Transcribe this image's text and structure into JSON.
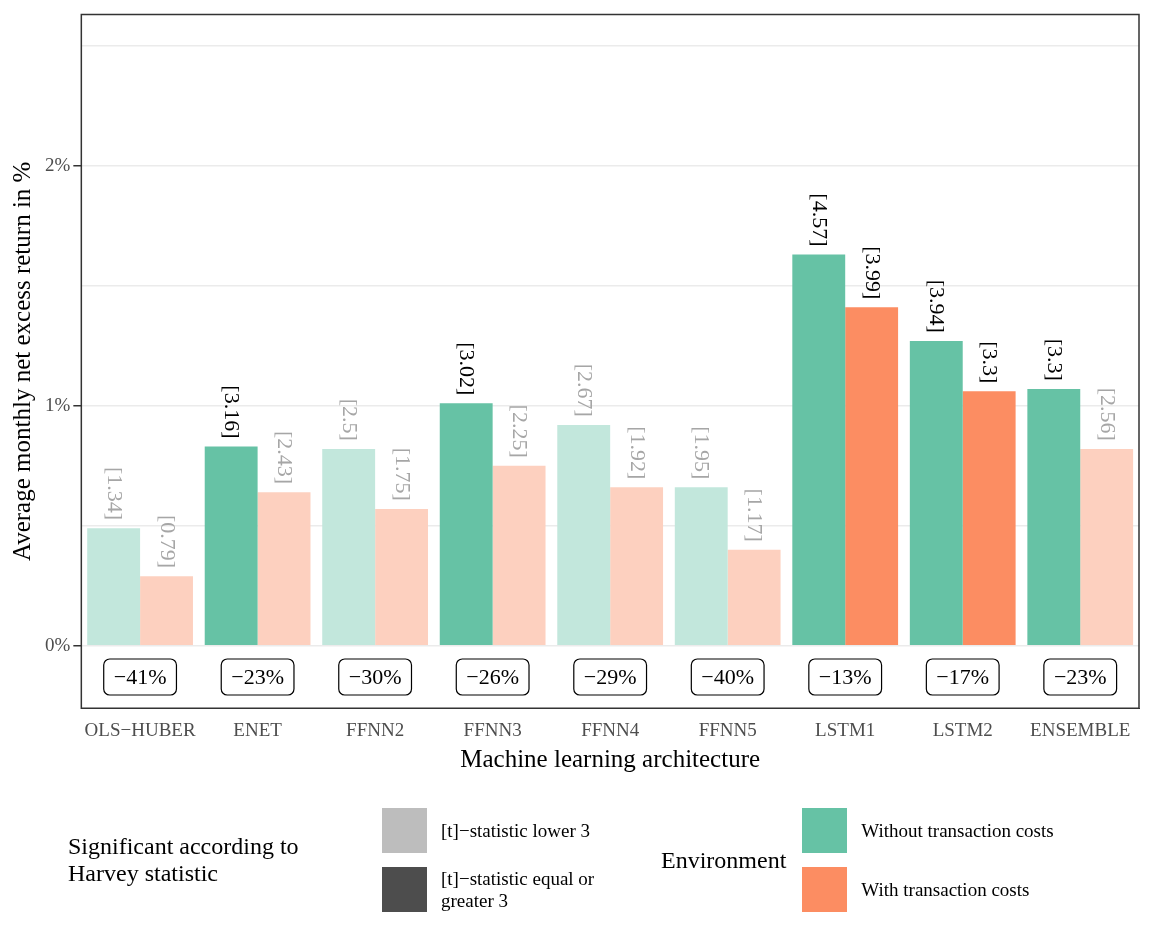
{
  "chart_data": {
    "type": "bar",
    "xlabel": "Machine learning architecture",
    "ylabel": "Average monthly net excess return in %",
    "categories": [
      "OLS−HUBER",
      "ENET",
      "FFNN2",
      "FFNN3",
      "FFNN4",
      "FFNN5",
      "LSTM1",
      "LSTM2",
      "ENSEMBLE"
    ],
    "series": [
      {
        "name": "Without transaction costs",
        "color": "#66c2a5",
        "colors": [
          "#c2e7dc",
          "#66c2a5",
          "#c2e7dc",
          "#66c2a5",
          "#c2e7dc",
          "#c2e7dc",
          "#66c2a5",
          "#66c2a5",
          "#66c2a5"
        ],
        "values": [
          0.49,
          0.83,
          0.82,
          1.01,
          0.92,
          0.66,
          1.63,
          1.27,
          1.07
        ]
      },
      {
        "name": "With transaction costs",
        "color": "#fc8d62",
        "colors": [
          "#fdd0bf",
          "#fdd0bf",
          "#fdd0bf",
          "#fdd0bf",
          "#fdd0bf",
          "#fdd0bf",
          "#fc8d62",
          "#fc8d62",
          "#fdd0bf"
        ],
        "values": [
          0.29,
          0.64,
          0.57,
          0.75,
          0.66,
          0.4,
          1.41,
          1.06,
          0.82
        ]
      }
    ],
    "ylim": [
      -0.26,
      2.63
    ],
    "yticks": [
      {
        "value": 0,
        "label": "0%"
      },
      {
        "value": 0.5,
        "label": null
      },
      {
        "value": 1,
        "label": "1%"
      },
      {
        "value": 1.5,
        "label": null
      },
      {
        "value": 2,
        "label": "2%"
      },
      {
        "value": 2.5,
        "label": null
      }
    ],
    "grid": "y",
    "legend": "bottom",
    "legend_title": "Environment",
    "annotations": [
      "Significant according to Harvey statistic",
      "[t]−statistic lower 3",
      "[t]−statistic equal or greater 3",
      "−41%",
      "−23%",
      "−30%",
      "−26%",
      "−29%",
      "−40%",
      "−13%",
      "−17%",
      "−23%",
      {
        "text": "[1.34]",
        "x": "OLS−HUBER",
        "y": 0.49
      },
      {
        "text": "[3.16]",
        "x": "ENET",
        "y": 0.83
      },
      {
        "text": "[2.5]",
        "x": "FFNN2",
        "y": 0.82
      },
      {
        "text": "[3.02]",
        "x": "FFNN3",
        "y": 1.01
      },
      {
        "text": "[2.67]",
        "x": "FFNN4",
        "y": 0.92
      },
      {
        "text": "[1.95]",
        "x": "FFNN5",
        "y": 0.66
      },
      {
        "text": "[4.57]",
        "x": "LSTM1",
        "y": 1.63
      },
      {
        "text": "[3.94]",
        "x": "LSTM2",
        "y": 1.27
      },
      {
        "text": "[3.3]",
        "x": "ENSEMBLE",
        "y": 1.07
      },
      {
        "text": "[0.79]",
        "x": "OLS−HUBER",
        "y": 0.29
      },
      {
        "text": "[2.43]",
        "x": "ENET",
        "y": 0.64
      },
      {
        "text": "[1.75]",
        "x": "FFNN2",
        "y": 0.57
      },
      {
        "text": "[2.25]",
        "x": "FFNN3",
        "y": 0.75
      },
      {
        "text": "[1.92]",
        "x": "FFNN4",
        "y": 0.66
      },
      {
        "text": "[1.17]",
        "x": "FFNN5",
        "y": 0.4
      },
      {
        "text": "[3.99]",
        "x": "LSTM1",
        "y": 1.41
      },
      {
        "text": "[3.3]",
        "x": "LSTM2",
        "y": 1.06
      },
      {
        "text": "[2.56]",
        "x": "ENSEMBLE",
        "y": 0.82
      }
    ]
  }
}
